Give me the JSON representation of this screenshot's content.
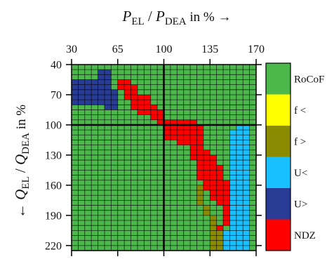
{
  "chart_data": {
    "type": "heatmap",
    "x_axis": {
      "title_main": "P",
      "title_sub": "EL",
      "title_sep": " / ",
      "title_main2": "P",
      "title_sub2": "DEA",
      "title_suffix": " in % →",
      "ticks": [
        30,
        65,
        100,
        135,
        170
      ],
      "tick_labels": [
        "30",
        "65",
        "100",
        "135",
        "170"
      ],
      "range": [
        30,
        170
      ],
      "position": "top"
    },
    "y_axis": {
      "title_prefix": "← ",
      "title_main": "Q",
      "title_sub": "EL",
      "title_sep": " / ",
      "title_main2": "Q",
      "title_sub2": "DEA",
      "title_suffix": " in %",
      "ticks": [
        40,
        70,
        100,
        130,
        160,
        190,
        220
      ],
      "tick_labels": [
        "40",
        "70",
        "100",
        "130",
        "160",
        "190",
        "220"
      ],
      "range": [
        40,
        220
      ],
      "inverted": true
    },
    "grid": true,
    "reference_lines": {
      "x": 100,
      "y": 100
    },
    "legend": {
      "placement": "right",
      "entries": [
        {
          "label": "RoCoF",
          "color": "#4cb84c"
        },
        {
          "label": "f <",
          "color": "#ffff00"
        },
        {
          "label": "f >",
          "color": "#8b8b00"
        },
        {
          "label": "U<",
          "color": "#19c0ff"
        },
        {
          "label": "U>",
          "color": "#283c96"
        },
        {
          "label": "NDZ",
          "color": "#ff0000"
        }
      ]
    },
    "region_cells": {
      "cell_step_x": 5,
      "cell_step_y": 5,
      "x_range": [
        30,
        170
      ],
      "y_range": [
        40,
        225
      ],
      "default_class": "RoCoF",
      "classes": {
        "U>": [
          [
            40,
            50,
            50
          ],
          [
            45,
            50,
            60
          ],
          [
            50,
            50,
            60
          ],
          [
            55,
            30,
            60
          ],
          [
            60,
            30,
            60
          ],
          [
            65,
            30,
            65
          ],
          [
            70,
            30,
            65
          ],
          [
            75,
            30,
            65
          ],
          [
            80,
            55,
            65
          ]
        ],
        "NDZ": [
          [
            55,
            65,
            75
          ],
          [
            60,
            65,
            80
          ],
          [
            65,
            70,
            80
          ],
          [
            70,
            70,
            90
          ],
          [
            75,
            75,
            90
          ],
          [
            80,
            75,
            95
          ],
          [
            85,
            80,
            100
          ],
          [
            90,
            90,
            100
          ],
          [
            95,
            95,
            125
          ],
          [
            100,
            100,
            130
          ],
          [
            105,
            100,
            130
          ],
          [
            110,
            100,
            130
          ],
          [
            115,
            110,
            130
          ],
          [
            120,
            120,
            130
          ],
          [
            125,
            120,
            135
          ],
          [
            130,
            120,
            140
          ],
          [
            135,
            125,
            140
          ],
          [
            140,
            125,
            145
          ],
          [
            145,
            125,
            145
          ],
          [
            150,
            125,
            145
          ],
          [
            155,
            130,
            150
          ],
          [
            160,
            130,
            150
          ],
          [
            165,
            135,
            150
          ],
          [
            170,
            135,
            150
          ],
          [
            175,
            140,
            150
          ],
          [
            180,
            145,
            150
          ],
          [
            185,
            145,
            150
          ],
          [
            190,
            145,
            150
          ],
          [
            195,
            145,
            150
          ],
          [
            200,
            140,
            145
          ]
        ],
        "f >": [
          [
            160,
            125,
            130
          ],
          [
            165,
            125,
            130
          ],
          [
            170,
            125,
            130
          ],
          [
            175,
            125,
            130
          ],
          [
            180,
            130,
            135
          ],
          [
            185,
            130,
            135
          ],
          [
            190,
            135,
            140
          ],
          [
            195,
            135,
            140
          ],
          [
            200,
            135,
            140
          ],
          [
            205,
            135,
            145
          ],
          [
            210,
            135,
            145
          ],
          [
            215,
            135,
            145
          ],
          [
            220,
            135,
            145
          ],
          [
            225,
            140,
            145
          ]
        ],
        "U<": [
          [
            100,
            155,
            165
          ],
          [
            105,
            150,
            165
          ],
          [
            110,
            150,
            165
          ],
          [
            115,
            150,
            165
          ],
          [
            120,
            150,
            165
          ],
          [
            125,
            150,
            165
          ],
          [
            130,
            150,
            165
          ],
          [
            135,
            150,
            165
          ],
          [
            140,
            150,
            165
          ],
          [
            145,
            150,
            165
          ],
          [
            150,
            150,
            165
          ],
          [
            155,
            150,
            165
          ],
          [
            160,
            150,
            165
          ],
          [
            165,
            150,
            165
          ],
          [
            170,
            150,
            165
          ],
          [
            175,
            150,
            165
          ],
          [
            180,
            150,
            165
          ],
          [
            185,
            150,
            165
          ],
          [
            190,
            150,
            165
          ],
          [
            195,
            150,
            165
          ],
          [
            200,
            150,
            165
          ],
          [
            205,
            145,
            165
          ],
          [
            210,
            145,
            165
          ],
          [
            215,
            145,
            165
          ],
          [
            220,
            145,
            165
          ],
          [
            225,
            145,
            165
          ]
        ]
      }
    }
  }
}
